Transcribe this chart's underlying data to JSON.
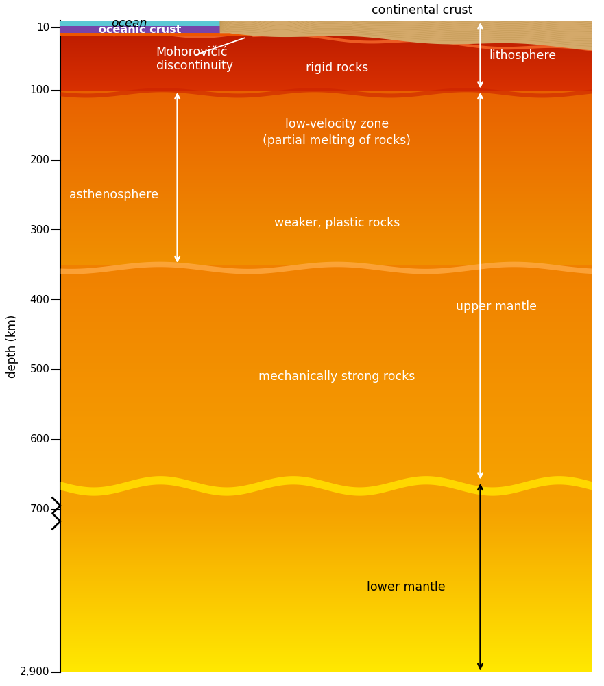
{
  "fig_width": 8.81,
  "fig_height": 10.0,
  "dpi": 100,
  "ocean_color": "#5BC8D4",
  "oceanic_crust_color": "#7744AA",
  "continental_crust_color": "#D4A96A",
  "continental_crust_lines_color": "#B8904A",
  "lith_mantle_color_top": "#B81800",
  "lith_mantle_color_bot": "#CC2200",
  "astheno_color_top": "#D83000",
  "astheno_color_bot": "#E86000",
  "astheno_lower_color_top": "#E87000",
  "astheno_lower_color_bot": "#F09000",
  "upper_mantle_color_top": "#F08000",
  "upper_mantle_color_bot": "#F5A000",
  "lower_mantle_color_top": "#F5A000",
  "lower_mantle_color_bot": "#FFE800",
  "boundary_660_color": "#FFD700",
  "boundary_350_color": "#FFAA44",
  "moho_color": "#FF7733",
  "white": "#FFFFFF",
  "black": "#000000",
  "ytick_labels": [
    "10",
    "100",
    "200",
    "300",
    "400",
    "500",
    "600",
    "700",
    "2,900"
  ],
  "ytick_depths": [
    10,
    100,
    200,
    300,
    400,
    500,
    600,
    700,
    2900
  ],
  "axis_label": "depth (km)"
}
